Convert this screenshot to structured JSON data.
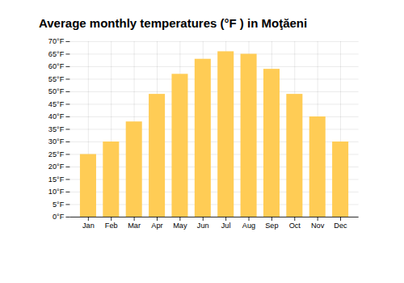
{
  "chart_data": {
    "type": "bar",
    "title": "Average monthly temperatures (°F ) in Moţăeni",
    "categories": [
      "Jan",
      "Feb",
      "Mar",
      "Apr",
      "May",
      "Jun",
      "Jul",
      "Aug",
      "Sep",
      "Oct",
      "Nov",
      "Dec"
    ],
    "values": [
      25,
      30,
      38,
      49,
      57,
      63,
      66,
      65,
      59,
      49,
      40,
      30
    ],
    "color": "#FFCC55",
    "ylim": [
      0,
      70
    ],
    "yticks": [
      {
        "value": 0,
        "label": "0°F"
      },
      {
        "value": 5,
        "label": "5°F"
      },
      {
        "value": 10,
        "label": "10°F"
      },
      {
        "value": 15,
        "label": "15°F"
      },
      {
        "value": 20,
        "label": "20°F"
      },
      {
        "value": 25,
        "label": "25°F"
      },
      {
        "value": 30,
        "label": "30°F"
      },
      {
        "value": 35,
        "label": "35°F"
      },
      {
        "value": 40,
        "label": "40°F"
      },
      {
        "value": 45,
        "label": "45°F"
      },
      {
        "value": 50,
        "label": "50°F"
      },
      {
        "value": 55,
        "label": "55°F"
      },
      {
        "value": 60,
        "label": "60°F"
      },
      {
        "value": 65,
        "label": "65°F"
      },
      {
        "value": 70,
        "label": "70°F"
      }
    ],
    "grid": true
  }
}
